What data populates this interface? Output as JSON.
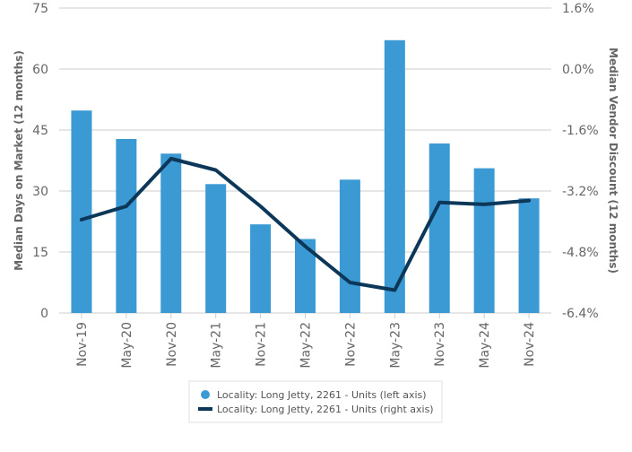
{
  "chart_data": {
    "type": "bar+line",
    "categories": [
      "Nov-19",
      "May-20",
      "Nov-20",
      "May-21",
      "Nov-21",
      "May-22",
      "Nov-22",
      "May-23",
      "Nov-23",
      "May-24",
      "Nov-24"
    ],
    "series": [
      {
        "name": "Locality: Long Jetty, 2261 - Units (left axis)",
        "type": "bar",
        "axis": "left",
        "color": "#3b99d4",
        "values": [
          49.8,
          42.8,
          39.2,
          31.7,
          21.8,
          18.2,
          32.8,
          67.1,
          41.7,
          35.6,
          28.2
        ]
      },
      {
        "name": "Locality: Long Jetty, 2261 - Units (right axis)",
        "type": "line",
        "axis": "right",
        "color": "#0c3758",
        "values": [
          -3.95,
          -3.6,
          -2.35,
          -2.65,
          -3.6,
          -4.65,
          -5.6,
          -5.8,
          -3.5,
          -3.55,
          -3.45
        ]
      }
    ],
    "left_axis": {
      "title": "Median Days on Market (12 months)",
      "ylim": [
        0,
        75
      ],
      "ticks": [
        0,
        15,
        30,
        45,
        60,
        75
      ],
      "tick_labels": [
        "0",
        "15",
        "30",
        "45",
        "60",
        "75"
      ]
    },
    "right_axis": {
      "title": "Median Vendor Discount (12 months)",
      "ylim": [
        -6.4,
        1.6
      ],
      "ticks": [
        -6.4,
        -4.8,
        -3.2,
        -1.6,
        0.0,
        1.6
      ],
      "tick_labels": [
        "-6.4%",
        "-4.8%",
        "-3.2%",
        "-1.6%",
        "0.0%",
        "1.6%"
      ]
    },
    "grid": true,
    "legend": {
      "position": "bottom-center",
      "entries": [
        "Locality: Long Jetty, 2261 - Units (left axis)",
        "Locality: Long Jetty, 2261 - Units (right axis)"
      ]
    },
    "colors": {
      "bar": "#3b99d4",
      "line": "#0c3758",
      "grid": "#cccccc",
      "tick_text": "#666666"
    }
  }
}
